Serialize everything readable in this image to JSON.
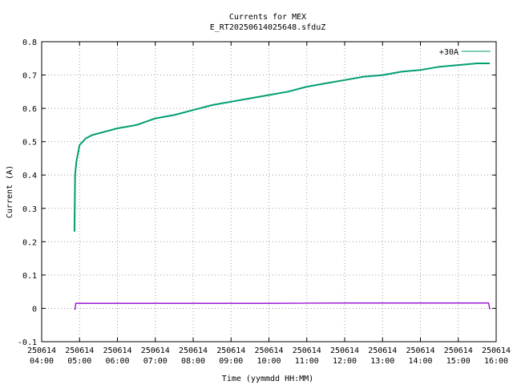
{
  "chart_data": {
    "type": "line",
    "title": "Currents for MEX",
    "subtitle": "E_RT20250614025648.sfduZ",
    "xlabel": "Time (yymmdd HH:MM)",
    "ylabel": "Current (A)",
    "xlim": [
      "250614 04:00",
      "250614 16:00"
    ],
    "ylim": [
      -0.1,
      0.8
    ],
    "y_ticks": [
      "-0.1",
      "0",
      "0.1",
      "0.2",
      "0.3",
      "0.4",
      "0.5",
      "0.6",
      "0.7",
      "0.8"
    ],
    "x_ticks": [
      {
        "date": "250614",
        "time": "04:00"
      },
      {
        "date": "250614",
        "time": "05:00"
      },
      {
        "date": "250614",
        "time": "06:00"
      },
      {
        "date": "250614",
        "time": "07:00"
      },
      {
        "date": "250614",
        "time": "08:00"
      },
      {
        "date": "250614",
        "time": "09:00"
      },
      {
        "date": "250614",
        "time": "10:00"
      },
      {
        "date": "250614",
        "time": "11:00"
      },
      {
        "date": "250614",
        "time": "12:00"
      },
      {
        "date": "250614",
        "time": "13:00"
      },
      {
        "date": "250614",
        "time": "14:00"
      },
      {
        "date": "250614",
        "time": "15:00"
      },
      {
        "date": "250614",
        "time": "16:00"
      }
    ],
    "grid": true,
    "legend_position": "top-right",
    "series": [
      {
        "name": "+30A",
        "color": "#009e73",
        "points": [
          [
            "250614 04:52",
            0.23
          ],
          [
            "250614 04:53",
            0.4
          ],
          [
            "250614 04:55",
            0.44
          ],
          [
            "250614 04:58",
            0.47
          ],
          [
            "250614 05:00",
            0.49
          ],
          [
            "250614 05:10",
            0.51
          ],
          [
            "250614 05:20",
            0.52
          ],
          [
            "250614 05:40",
            0.53
          ],
          [
            "250614 06:00",
            0.54
          ],
          [
            "250614 06:30",
            0.55
          ],
          [
            "250614 07:00",
            0.57
          ],
          [
            "250614 07:30",
            0.58
          ],
          [
            "250614 08:00",
            0.595
          ],
          [
            "250614 08:30",
            0.61
          ],
          [
            "250614 09:00",
            0.62
          ],
          [
            "250614 09:30",
            0.63
          ],
          [
            "250614 10:00",
            0.64
          ],
          [
            "250614 10:30",
            0.65
          ],
          [
            "250614 11:00",
            0.665
          ],
          [
            "250614 11:30",
            0.675
          ],
          [
            "250614 12:00",
            0.685
          ],
          [
            "250614 12:30",
            0.695
          ],
          [
            "250614 13:00",
            0.7
          ],
          [
            "250614 13:30",
            0.71
          ],
          [
            "250614 14:00",
            0.715
          ],
          [
            "250614 14:30",
            0.725
          ],
          [
            "250614 15:00",
            0.73
          ],
          [
            "250614 15:30",
            0.735
          ],
          [
            "250614 15:50",
            0.735
          ]
        ]
      },
      {
        "name": "",
        "color": "#9400d3",
        "points": [
          [
            "250614 04:52",
            -0.003
          ],
          [
            "250614 04:53",
            -0.003
          ],
          [
            "250614 04:54",
            0.015
          ],
          [
            "250614 06:00",
            0.015
          ],
          [
            "250614 08:00",
            0.015
          ],
          [
            "250614 10:00",
            0.015
          ],
          [
            "250614 12:00",
            0.016
          ],
          [
            "250614 14:00",
            0.016
          ],
          [
            "250614 15:48",
            0.016
          ],
          [
            "250614 15:50",
            -0.003
          ]
        ]
      }
    ]
  }
}
